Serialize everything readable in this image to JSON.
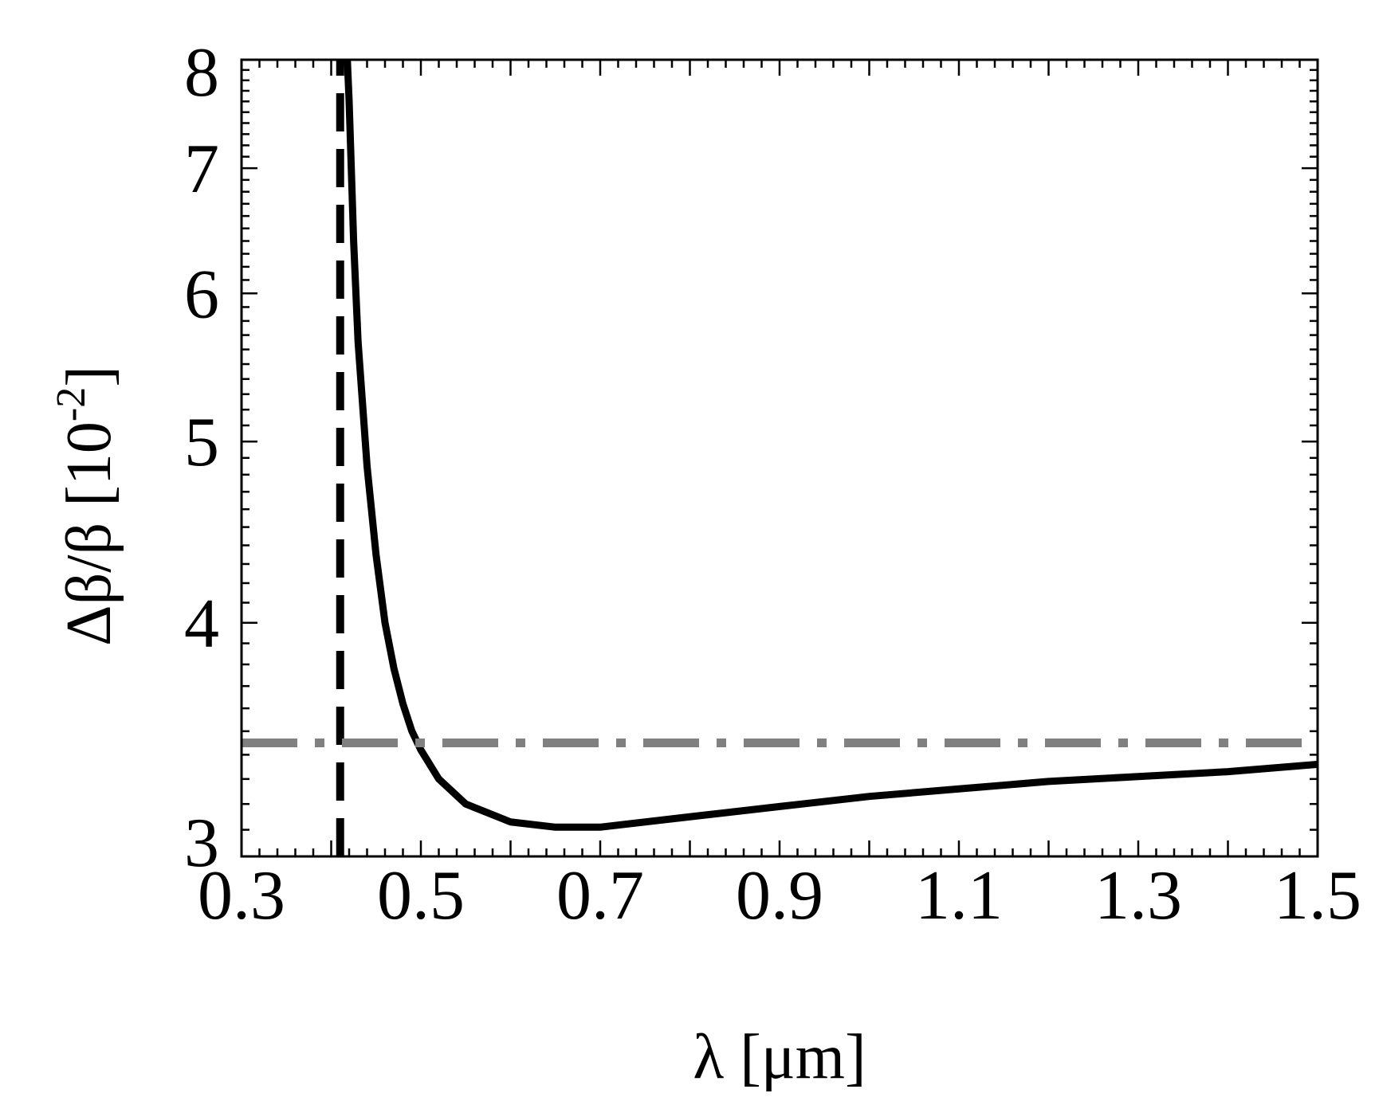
{
  "chart_data": {
    "type": "line",
    "title": "",
    "xlabel": "λ [μm]",
    "ylabel": {
      "main": "Δβ/β [10",
      "exponent": "-2",
      "close": "]"
    },
    "xlim": [
      0.3,
      1.5
    ],
    "ylim": [
      3,
      8
    ],
    "y_scale": "log",
    "grid": false,
    "x_ticks": [
      "0.3",
      "0.5",
      "0.7",
      "0.9",
      "1.1",
      "1.3",
      "1.5"
    ],
    "y_ticks": [
      "3",
      "4",
      "5",
      "6",
      "7",
      "8"
    ],
    "series": [
      {
        "style": "solid",
        "color": "#000000",
        "x": [
          0.418,
          0.42,
          0.425,
          0.43,
          0.44,
          0.45,
          0.46,
          0.47,
          0.48,
          0.49,
          0.5,
          0.52,
          0.55,
          0.6,
          0.65,
          0.7,
          0.8,
          0.9,
          1.0,
          1.1,
          1.2,
          1.3,
          1.4,
          1.5
        ],
        "y": [
          8.0,
          7.6,
          6.4,
          5.65,
          4.85,
          4.35,
          4.0,
          3.78,
          3.62,
          3.5,
          3.42,
          3.3,
          3.2,
          3.13,
          3.11,
          3.11,
          3.15,
          3.19,
          3.23,
          3.26,
          3.29,
          3.31,
          3.33,
          3.36
        ]
      },
      {
        "style": "dashed",
        "color": "#000000",
        "x": [
          0.41,
          0.41
        ],
        "y": [
          3,
          8
        ]
      },
      {
        "style": "dash-dot",
        "color": "#808080",
        "x": [
          0.3,
          1.5
        ],
        "y": [
          3.45,
          3.45
        ]
      }
    ]
  }
}
